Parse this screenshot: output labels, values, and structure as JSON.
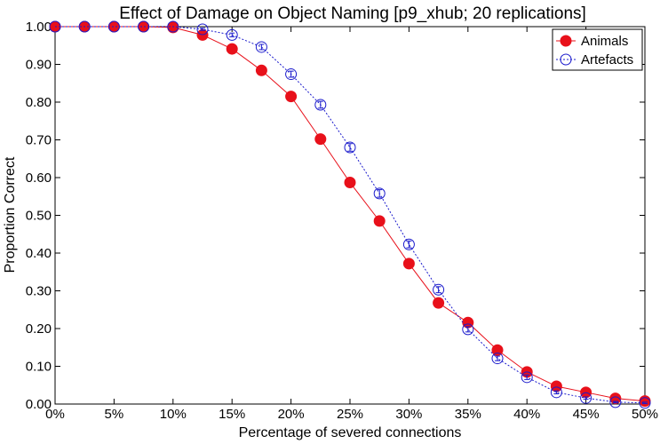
{
  "chart_data": {
    "type": "line",
    "title": "Effect of Damage on Object Naming [p9_xhub; 20 replications]",
    "xlabel": "Percentage of severed connections",
    "ylabel": "Proportion Correct",
    "xlim": [
      0,
      50
    ],
    "ylim": [
      0,
      1
    ],
    "x_ticks": [
      "0%",
      "5%",
      "10%",
      "15%",
      "20%",
      "25%",
      "30%",
      "35%",
      "40%",
      "45%",
      "50%"
    ],
    "y_ticks": [
      "0.00",
      "0.10",
      "0.20",
      "0.30",
      "0.40",
      "0.50",
      "0.60",
      "0.70",
      "0.80",
      "0.90",
      "1.00"
    ],
    "legend_position": "top-right",
    "grid": false,
    "x": [
      0,
      2.5,
      5,
      7.5,
      10,
      12.5,
      15,
      17.5,
      20,
      22.5,
      25,
      27.5,
      30,
      32.5,
      35,
      37.5,
      40,
      42.5,
      45,
      47.5,
      50
    ],
    "series": [
      {
        "name": "Animals",
        "color": "#e8101a",
        "marker": "filled-circle",
        "line": "solid",
        "values": [
          1.0,
          1.0,
          1.0,
          1.0,
          0.998,
          0.978,
          0.941,
          0.884,
          0.815,
          0.702,
          0.587,
          0.485,
          0.372,
          0.268,
          0.216,
          0.143,
          0.085,
          0.047,
          0.031,
          0.015,
          0.008
        ],
        "errors": [
          0,
          0,
          0,
          0,
          0,
          0.004,
          0.005,
          0.006,
          0.007,
          0.008,
          0.012,
          0.008,
          0.007,
          0.006,
          0.005,
          0.005,
          0.004,
          0.003,
          0.003,
          0.002,
          0.002
        ]
      },
      {
        "name": "Artefacts",
        "color": "#1a1acc",
        "marker": "open-circle",
        "line": "dotted",
        "values": [
          1.0,
          1.0,
          1.0,
          1.0,
          1.0,
          0.993,
          0.978,
          0.946,
          0.874,
          0.793,
          0.68,
          0.558,
          0.423,
          0.303,
          0.198,
          0.121,
          0.071,
          0.031,
          0.016,
          0.005,
          0.003
        ],
        "errors": [
          0,
          0,
          0,
          0,
          0,
          0.003,
          0.005,
          0.007,
          0.008,
          0.009,
          0.01,
          0.01,
          0.009,
          0.008,
          0.007,
          0.006,
          0.006,
          0.004,
          0.003,
          0.002,
          0.002
        ]
      }
    ]
  }
}
